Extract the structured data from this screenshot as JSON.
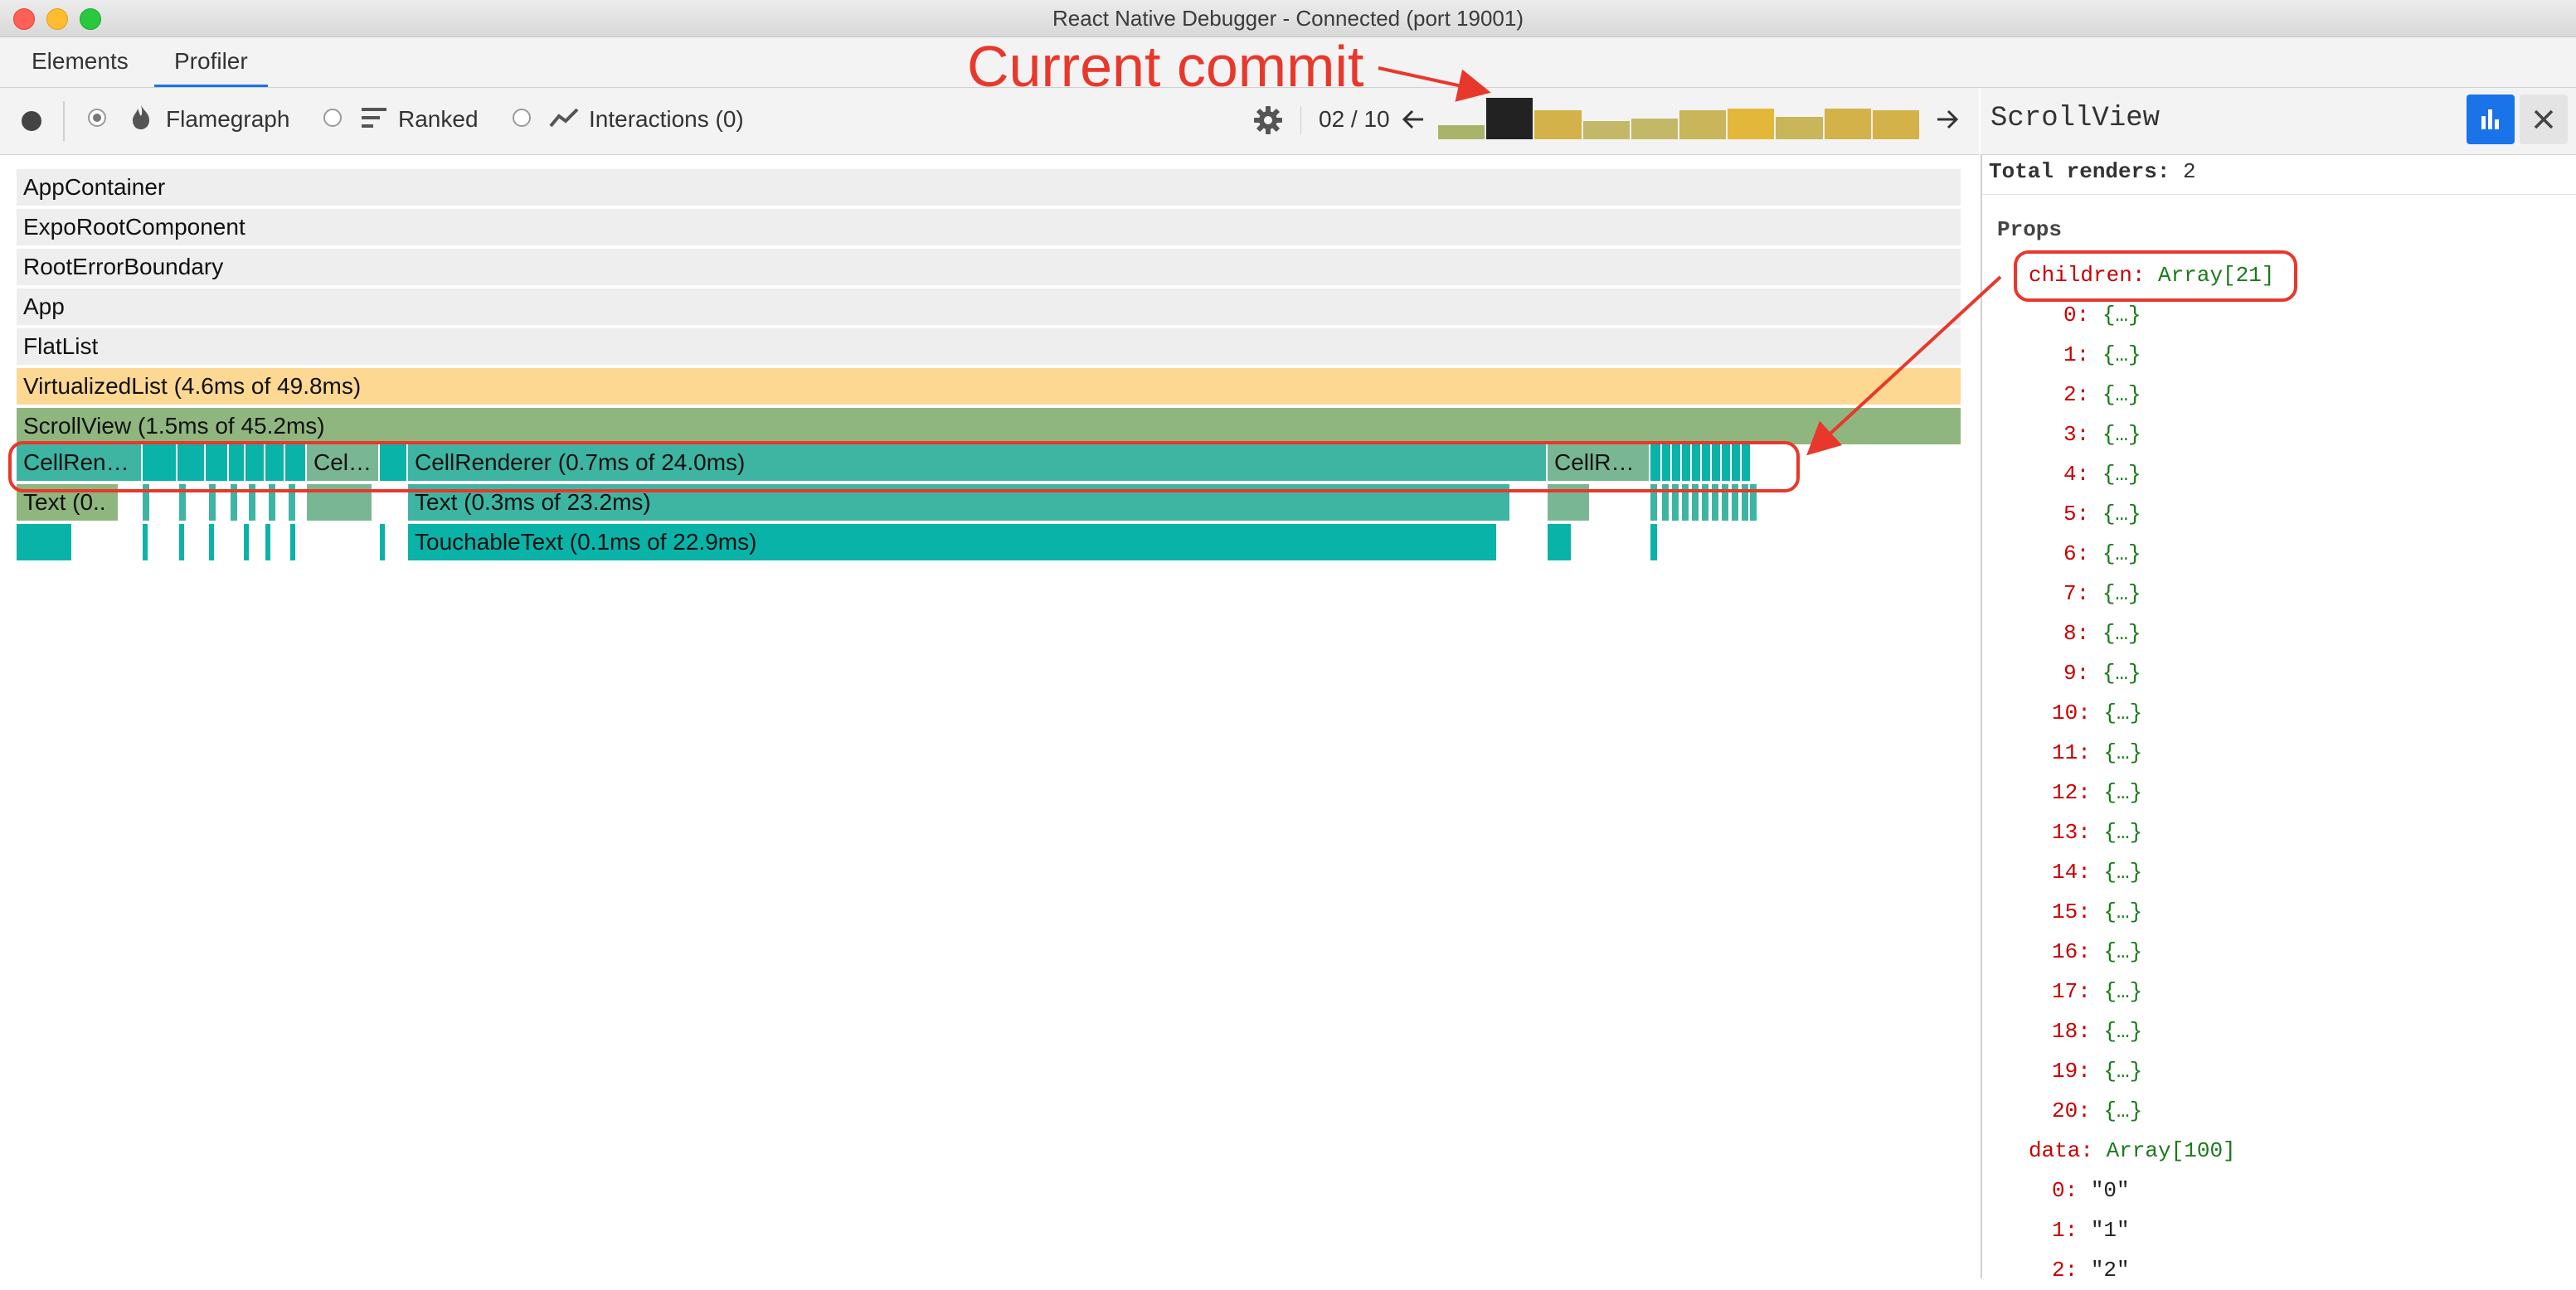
{
  "window": {
    "title": "React Native Debugger - Connected (port 19001)"
  },
  "tabs": [
    {
      "label": "Elements"
    },
    {
      "label": "Profiler"
    }
  ],
  "toolbar": {
    "flamegraph_label": "Flamegraph",
    "ranked_label": "Ranked",
    "interactions_label": "Interactions (0)",
    "commit_counter": "02 / 10",
    "commit_bars": [
      {
        "height": 0.35,
        "color": "#a9b46a"
      },
      {
        "height": 1.0,
        "color": "#222222",
        "selected": true
      },
      {
        "height": 0.7,
        "color": "#d4b24a"
      },
      {
        "height": 0.45,
        "color": "#c2b867"
      },
      {
        "height": 0.5,
        "color": "#c2b867"
      },
      {
        "height": 0.7,
        "color": "#c9b55a"
      },
      {
        "height": 0.75,
        "color": "#e3b83a"
      },
      {
        "height": 0.55,
        "color": "#c9b55a"
      },
      {
        "height": 0.75,
        "color": "#d4b24a"
      },
      {
        "height": 0.7,
        "color": "#d4b24a"
      }
    ]
  },
  "annotation": {
    "text": "Current commit"
  },
  "flamegraph": {
    "rows": [
      "AppContainer",
      "ExpoRootComponent",
      "RootErrorBoundary",
      "App",
      "FlatList",
      "VirtualizedList (4.6ms of 49.8ms)",
      "ScrollView (1.5ms of 45.2ms)"
    ],
    "cell_labels": {
      "first": "CellRen…",
      "second": "Cel…",
      "main": "CellRenderer (0.7ms of 24.0ms)",
      "last": "CellR…"
    },
    "text_labels": {
      "first": "Text (0..",
      "main": "Text (0.3ms of 23.2ms)"
    },
    "touchable_label": "TouchableText (0.1ms of 22.9ms)"
  },
  "panel": {
    "component_name": "ScrollView",
    "total_renders_label": "Total renders:",
    "total_renders_value": "2",
    "props_heading": "Props",
    "children_key": "children:",
    "children_value": "Array[21]",
    "children_items": [
      "0:",
      "1:",
      "2:",
      "3:",
      "4:",
      "5:",
      "6:",
      "7:",
      "8:",
      "9:",
      "10:",
      "11:",
      "12:",
      "13:",
      "14:",
      "15:",
      "16:",
      "17:",
      "18:",
      "19:",
      "20:"
    ],
    "child_value": "{…}",
    "data_key": "data:",
    "data_value": "Array[100]",
    "data_items": [
      {
        "key": "0:",
        "value": "\"0\""
      },
      {
        "key": "1:",
        "value": "\"1\""
      },
      {
        "key": "2:",
        "value": "\"2\""
      }
    ]
  }
}
